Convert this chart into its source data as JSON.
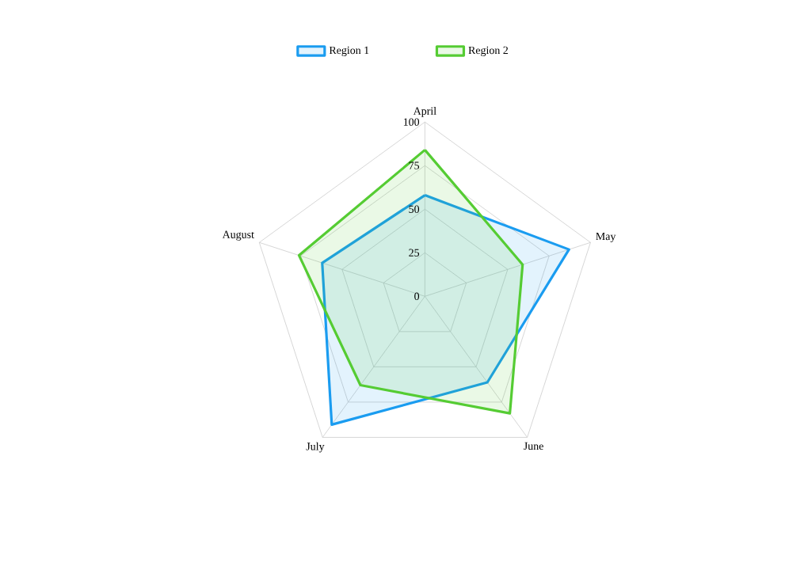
{
  "chart_data": {
    "type": "radar",
    "categories": [
      "April",
      "May",
      "June",
      "July",
      "August"
    ],
    "series": [
      {
        "name": "Region 1",
        "color": "#1a9cf0",
        "values": [
          58,
          87,
          61,
          91,
          62
        ]
      },
      {
        "name": "Region 2",
        "color": "#55cc33",
        "values": [
          84,
          59,
          83,
          63,
          76
        ]
      }
    ],
    "ylim": [
      0,
      100
    ],
    "yticks": [
      0,
      25,
      50,
      75,
      100
    ],
    "grid": true,
    "legend": "top"
  }
}
